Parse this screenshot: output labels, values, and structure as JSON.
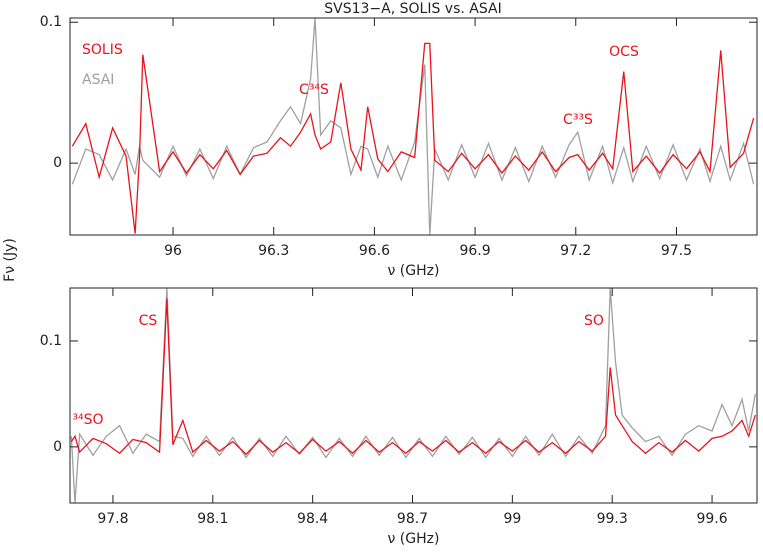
{
  "chart_data": [
    {
      "type": "line",
      "title": "SVS13−A, SOLIS vs. ASAI",
      "xlabel": "ν (GHz)",
      "ylabel": "Fν (Jy)",
      "xlim": [
        95.693,
        97.74
      ],
      "ylim": [
        -0.051,
        0.103
      ],
      "xticks": [
        96,
        96.3,
        96.6,
        96.9,
        97.2,
        97.5
      ],
      "yticks": [
        0,
        0.1
      ],
      "legend": "upper left",
      "annotations": [
        "C³⁴S",
        "C³³S",
        "OCS"
      ],
      "annotation_color": "#e8141b",
      "x": [
        95.7,
        95.74,
        95.78,
        95.82,
        95.86,
        95.887,
        95.9,
        95.91,
        95.96,
        96.0,
        96.04,
        96.08,
        96.12,
        96.16,
        96.2,
        96.24,
        96.28,
        96.32,
        96.35,
        96.38,
        96.41,
        96.423,
        96.44,
        96.47,
        96.5,
        96.53,
        96.56,
        96.58,
        96.61,
        96.64,
        96.68,
        96.72,
        96.75,
        96.765,
        96.78,
        96.82,
        96.86,
        96.9,
        96.94,
        96.98,
        97.02,
        97.06,
        97.1,
        97.14,
        97.18,
        97.206,
        97.24,
        97.28,
        97.31,
        97.343,
        97.37,
        97.41,
        97.45,
        97.49,
        97.53,
        97.57,
        97.6,
        97.632,
        97.66,
        97.7,
        97.73
      ],
      "series": [
        {
          "name": "ASAI",
          "color": "#a0a0a0",
          "values": [
            -0.015,
            0.01,
            0.006,
            -0.012,
            0.01,
            -0.008,
            0.012,
            0.002,
            -0.01,
            0.012,
            -0.009,
            0.01,
            -0.011,
            0.012,
            -0.008,
            0.011,
            0.015,
            0.03,
            0.04,
            0.028,
            0.06,
            0.103,
            0.02,
            0.03,
            0.025,
            -0.008,
            0.012,
            0.01,
            -0.01,
            0.012,
            -0.012,
            0.015,
            0.07,
            -0.051,
            0.01,
            -0.012,
            0.013,
            -0.01,
            0.014,
            -0.012,
            0.011,
            -0.013,
            0.012,
            -0.01,
            0.013,
            0.022,
            -0.012,
            0.012,
            -0.014,
            0.011,
            -0.013,
            0.012,
            -0.011,
            0.013,
            -0.012,
            0.01,
            -0.013,
            0.012,
            -0.012,
            0.014,
            -0.015
          ]
        },
        {
          "name": "SOLIS",
          "color": "#e8141b",
          "values": [
            0.012,
            0.028,
            -0.01,
            0.025,
            0.005,
            -0.05,
            0.004,
            0.077,
            -0.006,
            0.008,
            -0.007,
            0.006,
            -0.004,
            0.009,
            -0.008,
            0.005,
            0.007,
            0.018,
            0.012,
            0.022,
            0.035,
            0.02,
            0.01,
            0.015,
            0.057,
            0.01,
            -0.005,
            0.04,
            0.003,
            -0.006,
            0.008,
            0.004,
            0.085,
            0.085,
            0.002,
            -0.006,
            0.007,
            -0.004,
            0.006,
            -0.007,
            0.005,
            -0.005,
            0.008,
            -0.006,
            0.004,
            0.006,
            -0.005,
            0.007,
            -0.004,
            0.065,
            -0.006,
            0.005,
            -0.007,
            0.006,
            -0.004,
            0.008,
            -0.006,
            0.08,
            -0.003,
            0.007,
            0.032
          ]
        }
      ]
    },
    {
      "type": "line",
      "xlabel": "ν (GHz)",
      "xlim": [
        97.671,
        99.735
      ],
      "ylim": [
        -0.053,
        0.15
      ],
      "xticks": [
        97.8,
        98.1,
        98.4,
        98.7,
        99,
        99.3,
        99.6
      ],
      "yticks": [
        0,
        0.1
      ],
      "legend": false,
      "annotations": [
        "CS",
        "SO",
        "³⁴SO"
      ],
      "annotation_color": "#e8141b",
      "x": [
        97.675,
        97.686,
        97.7,
        97.74,
        97.78,
        97.82,
        97.86,
        97.9,
        97.94,
        97.962,
        97.98,
        98.01,
        98.04,
        98.08,
        98.12,
        98.16,
        98.2,
        98.24,
        98.28,
        98.32,
        98.36,
        98.4,
        98.44,
        98.48,
        98.52,
        98.56,
        98.6,
        98.64,
        98.68,
        98.72,
        98.76,
        98.8,
        98.84,
        98.88,
        98.92,
        98.96,
        99.0,
        99.04,
        99.08,
        99.12,
        99.16,
        99.2,
        99.24,
        99.28,
        99.294,
        99.31,
        99.33,
        99.36,
        99.4,
        99.44,
        99.48,
        99.52,
        99.56,
        99.6,
        99.63,
        99.66,
        99.69,
        99.71,
        99.73
      ],
      "series": [
        {
          "name": "ASAI",
          "color": "#a0a0a0",
          "values": [
            0.01,
            -0.053,
            0.012,
            -0.008,
            0.01,
            0.02,
            -0.006,
            0.012,
            0.005,
            0.15,
            0.01,
            0.008,
            -0.009,
            0.01,
            -0.008,
            0.009,
            -0.01,
            0.008,
            -0.009,
            0.01,
            -0.007,
            0.009,
            -0.01,
            0.008,
            -0.009,
            0.01,
            -0.008,
            0.009,
            -0.01,
            0.008,
            -0.009,
            0.01,
            -0.007,
            0.009,
            -0.01,
            0.008,
            -0.009,
            0.01,
            -0.008,
            0.012,
            -0.009,
            0.01,
            -0.006,
            0.02,
            0.15,
            0.08,
            0.03,
            0.018,
            0.005,
            0.01,
            -0.008,
            0.012,
            0.02,
            0.015,
            0.04,
            0.02,
            0.045,
            0.015,
            0.05
          ]
        },
        {
          "name": "SOLIS",
          "color": "#e8141b",
          "values": [
            0.005,
            0.01,
            -0.005,
            0.008,
            0.003,
            -0.006,
            0.007,
            0.004,
            -0.005,
            0.14,
            0.002,
            0.025,
            -0.005,
            0.006,
            -0.004,
            0.005,
            -0.007,
            0.006,
            -0.005,
            0.004,
            -0.006,
            0.007,
            -0.004,
            0.005,
            -0.006,
            0.006,
            -0.005,
            0.004,
            -0.006,
            0.005,
            -0.004,
            0.006,
            -0.005,
            0.004,
            -0.006,
            0.005,
            -0.004,
            0.006,
            -0.005,
            0.004,
            -0.006,
            0.005,
            -0.004,
            0.01,
            0.075,
            0.03,
            0.02,
            0.005,
            -0.006,
            0.004,
            -0.005,
            0.006,
            -0.004,
            0.008,
            0.01,
            0.015,
            0.025,
            0.01,
            0.03
          ]
        }
      ]
    }
  ]
}
